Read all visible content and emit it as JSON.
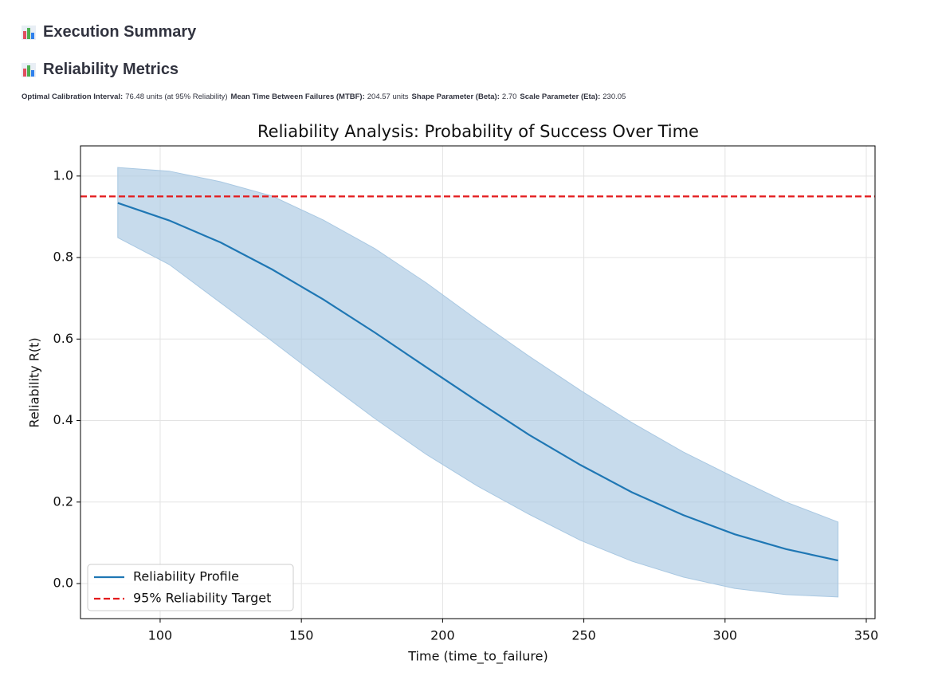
{
  "header": {
    "sections": [
      {
        "title": "Execution Summary"
      },
      {
        "title": "Reliability Metrics"
      }
    ]
  },
  "metrics": [
    {
      "label": "Optimal Calibration Interval:",
      "value": "76.48 units (at 95% Reliability)"
    },
    {
      "label": "Mean Time Between Failures (MTBF):",
      "value": "204.57 units"
    },
    {
      "label": "Shape Parameter (Beta):",
      "value": "2.70"
    },
    {
      "label": "Scale Parameter (Eta):",
      "value": "230.05"
    }
  ],
  "chart_data": {
    "type": "line",
    "title": "Reliability Analysis: Probability of Success Over Time",
    "x_label": "Time (time_to_failure)",
    "y_label": "Reliability R(t)",
    "x": [
      85,
      103.2,
      121.4,
      139.6,
      157.8,
      176,
      194.2,
      212.4,
      230.6,
      248.8,
      267,
      285.2,
      303.4,
      321.6,
      340
    ],
    "series": [
      {
        "name": "Reliability Profile",
        "color": "#1f77b4",
        "values": [
          0.934,
          0.891,
          0.837,
          0.771,
          0.697,
          0.616,
          0.531,
          0.447,
          0.365,
          0.291,
          0.224,
          0.168,
          0.121,
          0.0845,
          0.0566
        ]
      }
    ],
    "band": {
      "color": "#a9c8e2",
      "upper": [
        1.021,
        1.012,
        0.986,
        0.951,
        0.892,
        0.822,
        0.738,
        0.646,
        0.558,
        0.474,
        0.395,
        0.323,
        0.26,
        0.2,
        0.151
      ],
      "lower": [
        0.849,
        0.783,
        0.689,
        0.595,
        0.499,
        0.405,
        0.317,
        0.239,
        0.17,
        0.106,
        0.055,
        0.016,
        -0.012,
        -0.027,
        -0.033
      ]
    },
    "reference_line": {
      "name": "95% Reliability Target",
      "value": 0.95,
      "color": "#e31a1c"
    },
    "xlim": [
      71.8,
      353.1
    ],
    "ylim": [
      -0.086,
      1.074
    ],
    "xticks": [
      100,
      150,
      200,
      250,
      300,
      350
    ],
    "yticks": [
      {
        "value": 0,
        "label": "0.0"
      },
      0.2,
      0.4,
      0.6,
      0.8,
      {
        "value": 1,
        "label": "1.0"
      }
    ],
    "grid": true,
    "legend": "lower left"
  }
}
